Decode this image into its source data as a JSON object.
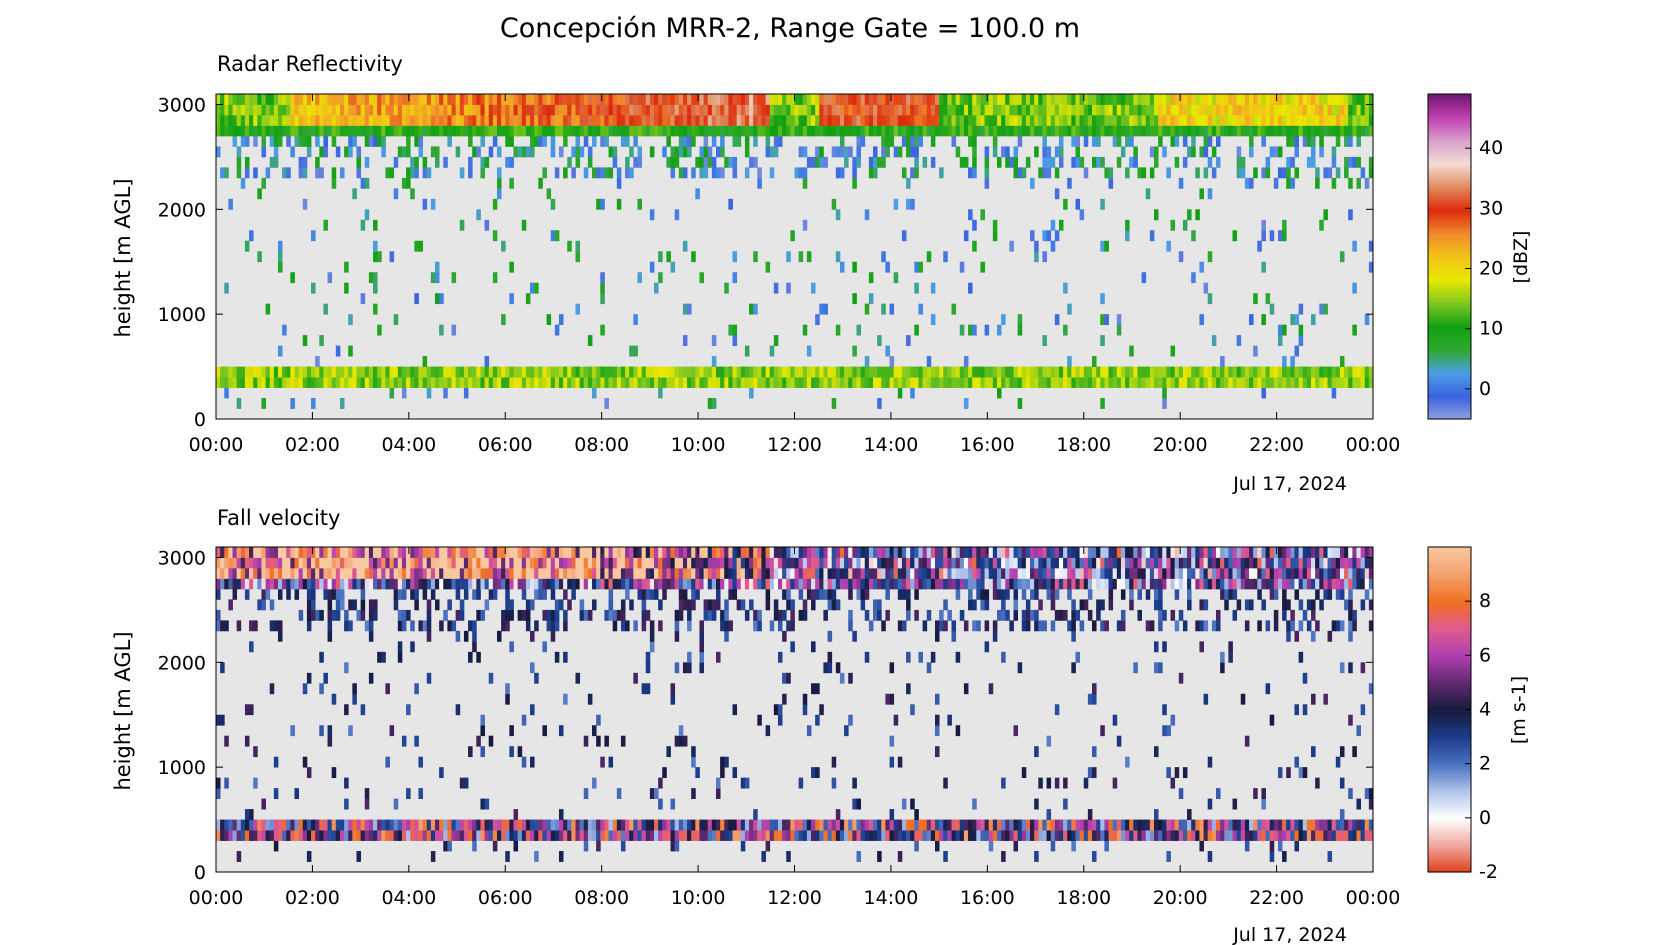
{
  "figure": {
    "title": "Concepción MRR-2, Range Gate = 100.0 m"
  },
  "chart_data": [
    {
      "type": "heatmap",
      "title": "Radar Reflectivity",
      "xlabel": "",
      "ylabel": "height [m AGL]",
      "date_label": "Jul 17, 2024",
      "x_ticks": [
        "00:00",
        "02:00",
        "04:00",
        "06:00",
        "08:00",
        "10:00",
        "12:00",
        "14:00",
        "16:00",
        "18:00",
        "20:00",
        "22:00",
        "00:00"
      ],
      "x_range_hours": [
        0,
        24
      ],
      "y_ticks": [
        0,
        1000,
        2000,
        3000
      ],
      "ylim": [
        0,
        3100
      ],
      "colorbar": {
        "label": "[dBZ]",
        "ticks": [
          0,
          10,
          20,
          30,
          40
        ],
        "range": [
          -5,
          49
        ],
        "colormap": "chase-spectral",
        "colors": [
          "#8f9fdc",
          "#3a64e0",
          "#4d9ee6",
          "#2ea82e",
          "#12a012",
          "#7ec820",
          "#e8e800",
          "#f2c418",
          "#f08a2c",
          "#dc2a0c",
          "#e08a5c",
          "#f4dcd4",
          "#d8a0cc",
          "#c040b0",
          "#701870"
        ]
      },
      "layers": [
        {
          "name": "surface band",
          "height_range_m": [
            300,
            500
          ],
          "typical_value": 15
        },
        {
          "name": "bright layer",
          "height_range_m": [
            2700,
            3100
          ],
          "typical_value": 25
        },
        {
          "name": "mid-level noise",
          "height_range_m": [
            100,
            2700
          ],
          "typical_value": 3
        }
      ],
      "background": "#e6e6e6"
    },
    {
      "type": "heatmap",
      "title": "Fall velocity",
      "xlabel": "",
      "ylabel": "height [m AGL]",
      "date_label": "Jul 17, 2024",
      "x_ticks": [
        "00:00",
        "02:00",
        "04:00",
        "06:00",
        "08:00",
        "10:00",
        "12:00",
        "14:00",
        "16:00",
        "18:00",
        "20:00",
        "22:00",
        "00:00"
      ],
      "x_range_hours": [
        0,
        24
      ],
      "y_ticks": [
        0,
        1000,
        2000,
        3000
      ],
      "ylim": [
        0,
        3100
      ],
      "colorbar": {
        "label": "[m s-1]",
        "ticks": [
          -2,
          0,
          2,
          4,
          6,
          8
        ],
        "range": [
          -2,
          10
        ],
        "colormap": "velocity-diverging",
        "colors": [
          "#e0401c",
          "#f0a8a0",
          "#ffffff",
          "#b0c4ec",
          "#4a70c0",
          "#1c3c8c",
          "#161a3c",
          "#602a70",
          "#b040b0",
          "#e05a90",
          "#f07020",
          "#f4a070",
          "#f8c8a0"
        ]
      },
      "layers": [
        {
          "name": "surface band",
          "height_range_m": [
            300,
            500
          ],
          "typical_value": 5
        },
        {
          "name": "upper layer",
          "height_range_m": [
            2650,
            3100
          ],
          "typical_value": 8
        },
        {
          "name": "mid-level noise",
          "height_range_m": [
            100,
            2650
          ],
          "typical_value": 3
        }
      ],
      "background": "#e6e6e6"
    }
  ]
}
